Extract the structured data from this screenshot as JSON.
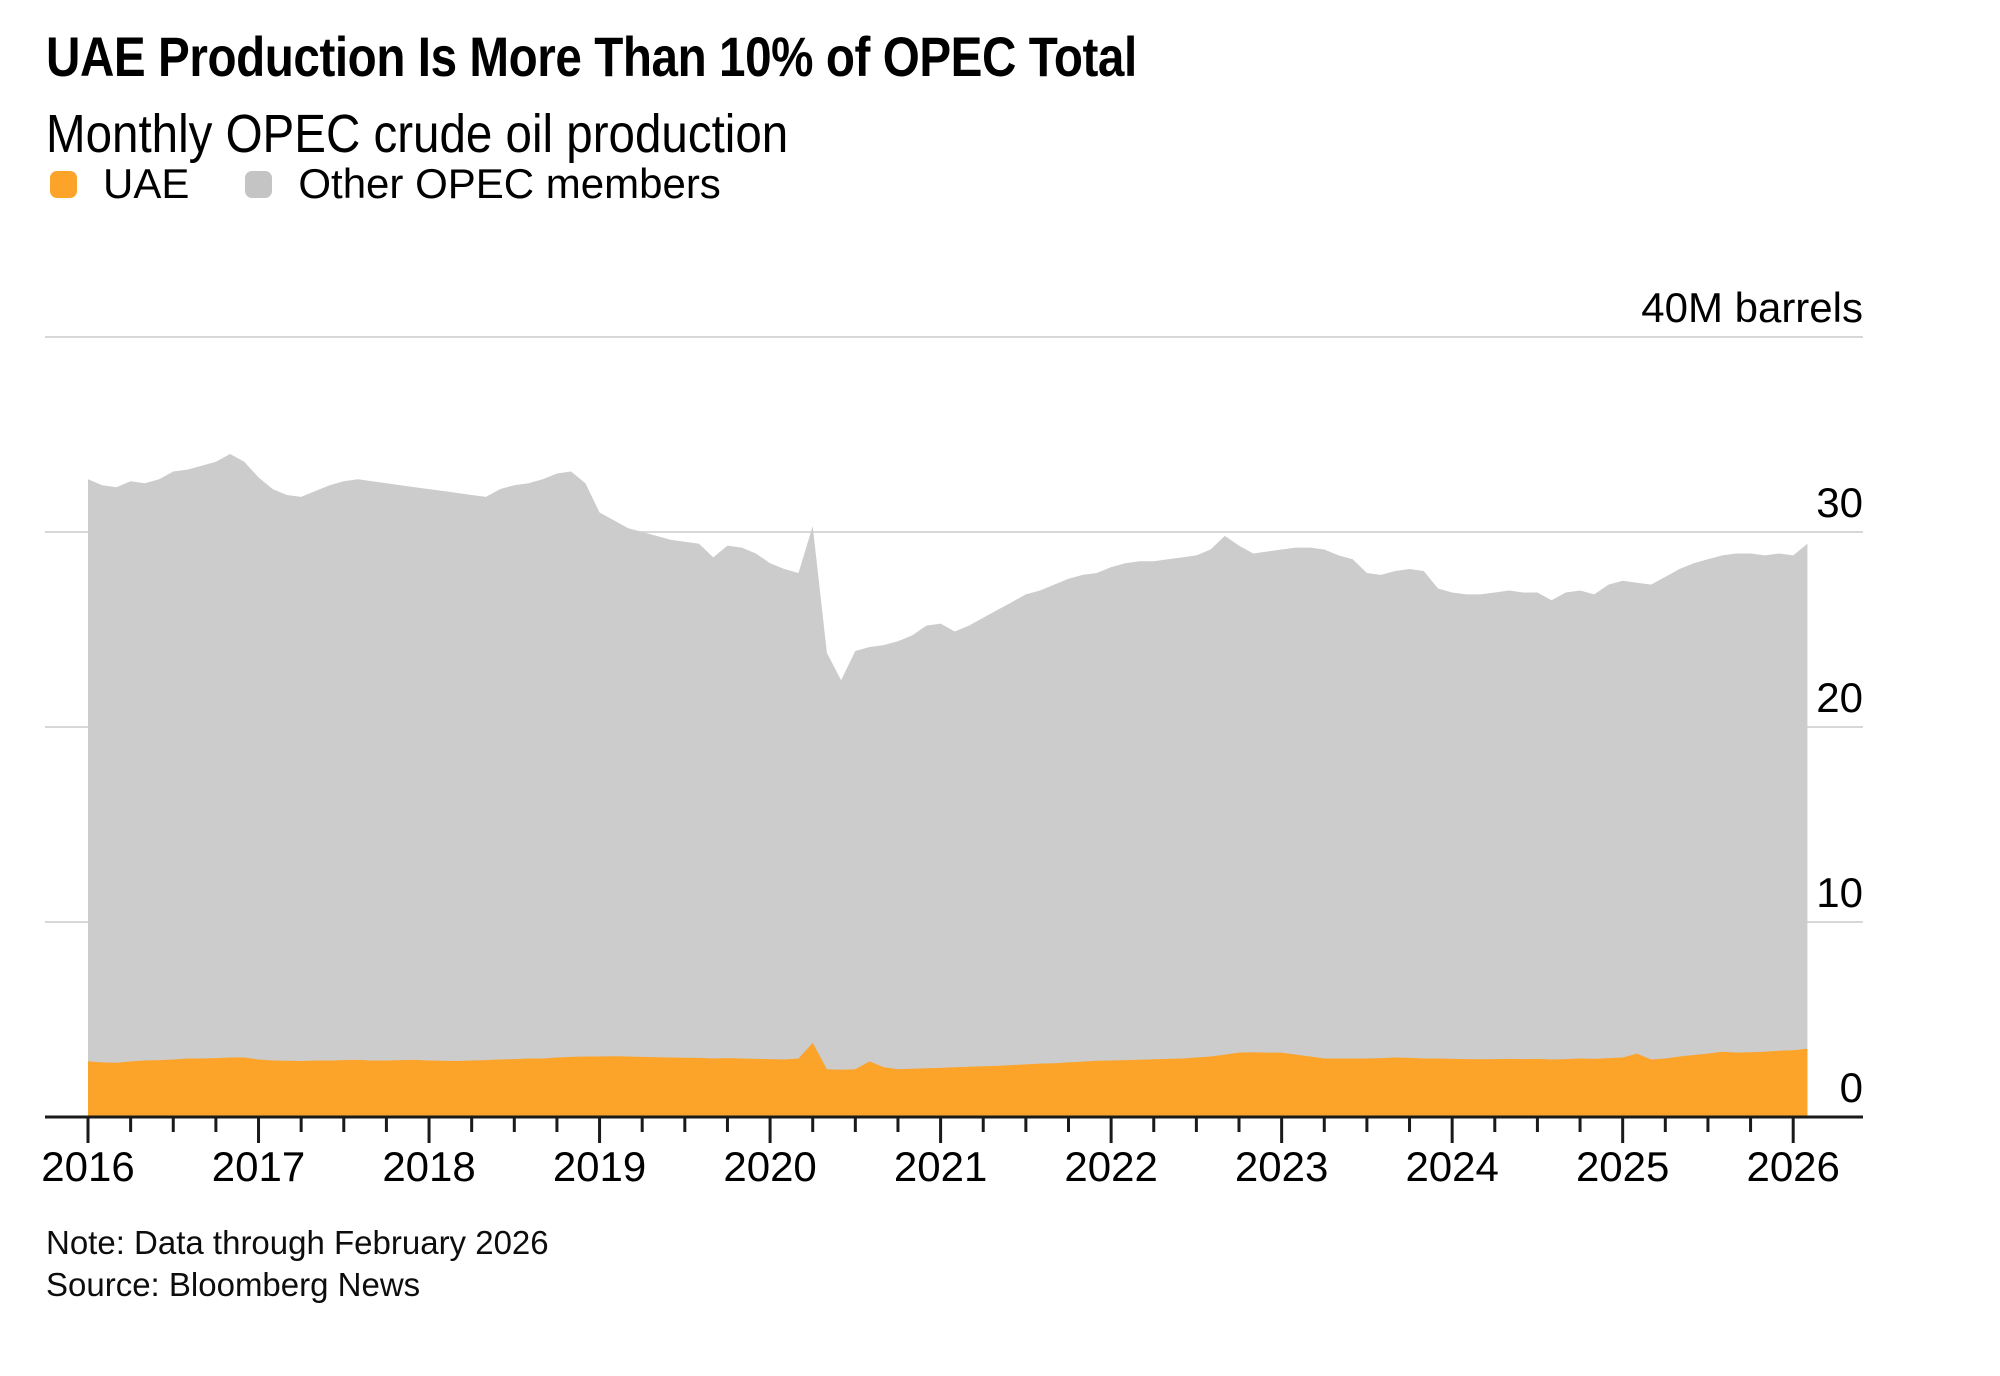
{
  "header": {
    "title": "UAE Production Is More Than 10% of OPEC Total",
    "subtitle": "Monthly OPEC crude oil production"
  },
  "legend": {
    "items": [
      {
        "label": "UAE",
        "color": "#fca32a"
      },
      {
        "label": "Other OPEC members",
        "color": "#c4c4c4"
      }
    ]
  },
  "footer": {
    "note": "Note: Data through February 2026",
    "source": "Source: Bloomberg News"
  },
  "colors": {
    "uae_area": "#fca32a",
    "other_area": "#cccccc",
    "gridline": "#d8d8d8",
    "axis": "#1a1a1a",
    "text": "#000000"
  },
  "chart_data": {
    "type": "area",
    "stacked": true,
    "title": "UAE Production Is More Than 10% of OPEC Total",
    "subtitle": "Monthly OPEC crude oil production",
    "unit_label": "40M barrels",
    "x_start": "2016-01",
    "x_end": "2026-02",
    "x_ticks": [
      "2016",
      "2017",
      "2018",
      "2019",
      "2020",
      "2021",
      "2022",
      "2023",
      "2024",
      "2025",
      "2026"
    ],
    "y_ticks": [
      {
        "value": 0,
        "label": "0"
      },
      {
        "value": 10,
        "label": "10"
      },
      {
        "value": 20,
        "label": "20"
      },
      {
        "value": 30,
        "label": "30"
      },
      {
        "value": 40,
        "label": "40M barrels"
      }
    ],
    "ylim": [
      0,
      40
    ],
    "legend_position": "top-left",
    "grid": "horizontal",
    "series": [
      {
        "name": "UAE",
        "color": "#fca32a",
        "values": [
          2.85,
          2.8,
          2.78,
          2.85,
          2.9,
          2.92,
          2.95,
          3.0,
          3.0,
          3.02,
          3.05,
          3.05,
          2.95,
          2.9,
          2.88,
          2.87,
          2.9,
          2.9,
          2.92,
          2.93,
          2.9,
          2.9,
          2.92,
          2.93,
          2.9,
          2.88,
          2.87,
          2.9,
          2.92,
          2.95,
          2.97,
          3.0,
          3.0,
          3.05,
          3.08,
          3.1,
          3.1,
          3.12,
          3.1,
          3.08,
          3.06,
          3.05,
          3.04,
          3.03,
          3.0,
          3.02,
          3.0,
          2.98,
          2.97,
          2.95,
          3.0,
          3.8,
          2.45,
          2.42,
          2.45,
          2.85,
          2.55,
          2.45,
          2.47,
          2.5,
          2.52,
          2.55,
          2.58,
          2.6,
          2.62,
          2.66,
          2.7,
          2.74,
          2.76,
          2.8,
          2.84,
          2.88,
          2.9,
          2.92,
          2.94,
          2.96,
          2.98,
          3.0,
          3.05,
          3.1,
          3.2,
          3.3,
          3.32,
          3.3,
          3.3,
          3.2,
          3.1,
          3.0,
          3.0,
          3.0,
          3.0,
          3.02,
          3.05,
          3.03,
          3.0,
          3.0,
          2.98,
          2.97,
          2.96,
          2.97,
          2.98,
          2.97,
          2.98,
          2.95,
          2.97,
          3.0,
          2.98,
          3.02,
          3.05,
          3.25,
          2.95,
          3.0,
          3.1,
          3.18,
          3.25,
          3.35,
          3.3,
          3.32,
          3.35,
          3.4,
          3.42,
          3.5
        ]
      },
      {
        "name": "Other OPEC members",
        "color": "#cccccc",
        "values_note": "computed as total minus UAE",
        "totals": [
          32.7,
          32.4,
          32.3,
          32.6,
          32.5,
          32.7,
          33.1,
          33.2,
          33.4,
          33.6,
          34.0,
          33.6,
          32.8,
          32.2,
          31.9,
          31.8,
          32.1,
          32.4,
          32.6,
          32.7,
          32.6,
          32.5,
          32.4,
          32.3,
          32.2,
          32.1,
          32.0,
          31.9,
          31.8,
          32.2,
          32.4,
          32.5,
          32.7,
          33.0,
          33.1,
          32.5,
          31.0,
          30.6,
          30.2,
          30.0,
          29.8,
          29.6,
          29.5,
          29.4,
          28.7,
          29.3,
          29.2,
          28.9,
          28.4,
          28.1,
          27.9,
          30.3,
          23.8,
          22.4,
          23.9,
          24.1,
          24.2,
          24.4,
          24.7,
          25.2,
          25.3,
          24.9,
          25.2,
          25.6,
          26.0,
          26.4,
          26.8,
          27.0,
          27.3,
          27.6,
          27.8,
          27.9,
          28.2,
          28.4,
          28.5,
          28.5,
          28.6,
          28.7,
          28.8,
          29.1,
          29.8,
          29.3,
          28.9,
          29.0,
          29.1,
          29.2,
          29.2,
          29.1,
          28.8,
          28.6,
          27.9,
          27.8,
          28.0,
          28.1,
          28.0,
          27.1,
          26.9,
          26.8,
          26.8,
          26.9,
          27.0,
          26.9,
          26.9,
          26.5,
          26.9,
          27.0,
          26.8,
          27.3,
          27.5,
          27.4,
          27.3,
          27.7,
          28.1,
          28.4,
          28.6,
          28.8,
          28.9,
          28.9,
          28.8,
          28.9,
          28.8,
          29.4
        ]
      }
    ]
  }
}
